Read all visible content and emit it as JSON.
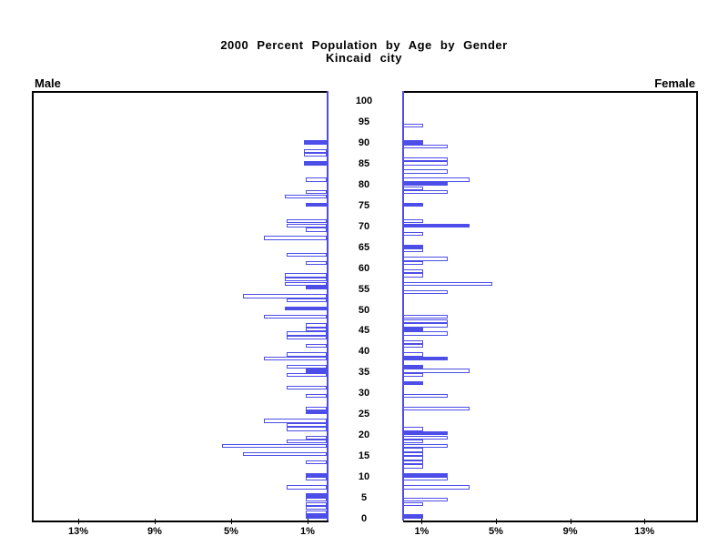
{
  "title": {
    "line1": "2000 Percent Population by Age by Gender",
    "line2": "Kincaid city"
  },
  "left_header": "Male",
  "right_header": "Female",
  "colors": {
    "bar_blue": "#4d4de8",
    "outline_fill": "#ffffff",
    "axis_black": "#000000"
  },
  "chart_data": {
    "type": "bar",
    "subtype": "population-pyramid",
    "title": "2000 Percent Population by Age by Gender",
    "subtitle": "Kincaid city",
    "age_axis": {
      "min": 0,
      "max": 100,
      "step": 5,
      "tick_labels": [
        "0",
        "5",
        "10",
        "15",
        "20",
        "25",
        "30",
        "35",
        "40",
        "45",
        "50",
        "55",
        "60",
        "65",
        "70",
        "75",
        "80",
        "85",
        "90",
        "95",
        "100"
      ]
    },
    "pct_axis": {
      "max_pct": 15.4,
      "male_tick_values": [
        13,
        9,
        5,
        1
      ],
      "male_tick_labels": [
        "13%",
        "9%",
        "5%",
        "1%"
      ],
      "female_tick_values": [
        1,
        5,
        9,
        13
      ],
      "female_tick_labels": [
        "1%",
        "5%",
        "9%",
        "13%"
      ]
    },
    "legend": {
      "solid_bar_meaning": "filled blue bar",
      "outline_bar_meaning": "white bar with blue outline"
    },
    "series": [
      {
        "name": "Male",
        "points": [
          {
            "age": 0,
            "value": 1.1,
            "solid": true
          },
          {
            "age": 1,
            "value": 1.1,
            "solid": false
          },
          {
            "age": 2,
            "value": 1.1,
            "solid": false
          },
          {
            "age": 3,
            "value": 1.1,
            "solid": false
          },
          {
            "age": 4,
            "value": 1.1,
            "solid": false
          },
          {
            "age": 5,
            "value": 1.1,
            "solid": true
          },
          {
            "age": 7,
            "value": 2.1,
            "solid": false
          },
          {
            "age": 9,
            "value": 1.1,
            "solid": false
          },
          {
            "age": 10,
            "value": 1.1,
            "solid": true
          },
          {
            "age": 13,
            "value": 1.1,
            "solid": false
          },
          {
            "age": 15,
            "value": 4.4,
            "solid": false
          },
          {
            "age": 17,
            "value": 5.5,
            "solid": false
          },
          {
            "age": 18,
            "value": 2.1,
            "solid": false
          },
          {
            "age": 19,
            "value": 1.1,
            "solid": false
          },
          {
            "age": 21,
            "value": 2.1,
            "solid": false
          },
          {
            "age": 22,
            "value": 2.1,
            "solid": false
          },
          {
            "age": 23,
            "value": 3.3,
            "solid": false
          },
          {
            "age": 25,
            "value": 1.1,
            "solid": true
          },
          {
            "age": 26,
            "value": 1.1,
            "solid": false
          },
          {
            "age": 29,
            "value": 1.1,
            "solid": false
          },
          {
            "age": 31,
            "value": 2.1,
            "solid": false
          },
          {
            "age": 34,
            "value": 2.1,
            "solid": false
          },
          {
            "age": 35,
            "value": 1.1,
            "solid": true
          },
          {
            "age": 36,
            "value": 2.1,
            "solid": false
          },
          {
            "age": 38,
            "value": 3.3,
            "solid": false
          },
          {
            "age": 39,
            "value": 2.1,
            "solid": false
          },
          {
            "age": 41,
            "value": 1.1,
            "solid": false
          },
          {
            "age": 43,
            "value": 2.1,
            "solid": false
          },
          {
            "age": 44,
            "value": 2.1,
            "solid": false
          },
          {
            "age": 45,
            "value": 1.1,
            "solid": false
          },
          {
            "age": 46,
            "value": 1.1,
            "solid": false
          },
          {
            "age": 48,
            "value": 3.3,
            "solid": false
          },
          {
            "age": 50,
            "value": 2.2,
            "solid": true
          },
          {
            "age": 52,
            "value": 2.1,
            "solid": false
          },
          {
            "age": 53,
            "value": 4.4,
            "solid": false
          },
          {
            "age": 55,
            "value": 1.1,
            "solid": true
          },
          {
            "age": 56,
            "value": 2.2,
            "solid": false
          },
          {
            "age": 57,
            "value": 2.2,
            "solid": false
          },
          {
            "age": 58,
            "value": 2.2,
            "solid": false
          },
          {
            "age": 61,
            "value": 1.1,
            "solid": false
          },
          {
            "age": 63,
            "value": 2.1,
            "solid": false
          },
          {
            "age": 67,
            "value": 3.3,
            "solid": false
          },
          {
            "age": 69,
            "value": 1.1,
            "solid": false
          },
          {
            "age": 70,
            "value": 2.1,
            "solid": false
          },
          {
            "age": 71,
            "value": 2.1,
            "solid": false
          },
          {
            "age": 75,
            "value": 1.1,
            "solid": true
          },
          {
            "age": 77,
            "value": 2.2,
            "solid": false
          },
          {
            "age": 78,
            "value": 1.1,
            "solid": false
          },
          {
            "age": 81,
            "value": 1.1,
            "solid": false
          },
          {
            "age": 85,
            "value": 1.2,
            "solid": true
          },
          {
            "age": 87,
            "value": 1.2,
            "solid": false
          },
          {
            "age": 88,
            "value": 1.2,
            "solid": false
          },
          {
            "age": 90,
            "value": 1.2,
            "solid": true
          }
        ]
      },
      {
        "name": "Female",
        "points": [
          {
            "age": 0,
            "value": 1.1,
            "solid": true
          },
          {
            "age": 3,
            "value": 1.1,
            "solid": false
          },
          {
            "age": 4,
            "value": 2.4,
            "solid": false
          },
          {
            "age": 7,
            "value": 3.6,
            "solid": false
          },
          {
            "age": 9,
            "value": 2.4,
            "solid": false
          },
          {
            "age": 10,
            "value": 2.4,
            "solid": true
          },
          {
            "age": 12,
            "value": 1.1,
            "solid": false
          },
          {
            "age": 13,
            "value": 1.1,
            "solid": false
          },
          {
            "age": 14,
            "value": 1.1,
            "solid": false
          },
          {
            "age": 15,
            "value": 1.1,
            "solid": false
          },
          {
            "age": 16,
            "value": 1.1,
            "solid": false
          },
          {
            "age": 17,
            "value": 2.4,
            "solid": false
          },
          {
            "age": 18,
            "value": 1.1,
            "solid": false
          },
          {
            "age": 19,
            "value": 2.4,
            "solid": false
          },
          {
            "age": 20,
            "value": 2.4,
            "solid": true
          },
          {
            "age": 21,
            "value": 1.1,
            "solid": false
          },
          {
            "age": 26,
            "value": 3.6,
            "solid": false
          },
          {
            "age": 29,
            "value": 2.4,
            "solid": false
          },
          {
            "age": 32,
            "value": 1.1,
            "solid": true
          },
          {
            "age": 34,
            "value": 1.1,
            "solid": false
          },
          {
            "age": 35,
            "value": 3.6,
            "solid": false
          },
          {
            "age": 36,
            "value": 1.1,
            "solid": true
          },
          {
            "age": 38,
            "value": 2.4,
            "solid": true
          },
          {
            "age": 39,
            "value": 1.1,
            "solid": false
          },
          {
            "age": 41,
            "value": 1.1,
            "solid": false
          },
          {
            "age": 42,
            "value": 1.1,
            "solid": false
          },
          {
            "age": 44,
            "value": 2.4,
            "solid": false
          },
          {
            "age": 45,
            "value": 1.1,
            "solid": true
          },
          {
            "age": 46,
            "value": 2.4,
            "solid": false
          },
          {
            "age": 47,
            "value": 2.4,
            "solid": false
          },
          {
            "age": 48,
            "value": 2.4,
            "solid": false
          },
          {
            "age": 54,
            "value": 2.4,
            "solid": false
          },
          {
            "age": 56,
            "value": 4.8,
            "solid": false
          },
          {
            "age": 58,
            "value": 1.1,
            "solid": false
          },
          {
            "age": 59,
            "value": 1.1,
            "solid": false
          },
          {
            "age": 61,
            "value": 1.1,
            "solid": false
          },
          {
            "age": 62,
            "value": 2.4,
            "solid": false
          },
          {
            "age": 64,
            "value": 1.1,
            "solid": false
          },
          {
            "age": 65,
            "value": 1.1,
            "solid": true
          },
          {
            "age": 68,
            "value": 1.1,
            "solid": false
          },
          {
            "age": 70,
            "value": 3.6,
            "solid": true
          },
          {
            "age": 71,
            "value": 1.1,
            "solid": false
          },
          {
            "age": 75,
            "value": 1.1,
            "solid": true
          },
          {
            "age": 78,
            "value": 2.4,
            "solid": false
          },
          {
            "age": 79,
            "value": 1.1,
            "solid": false
          },
          {
            "age": 80,
            "value": 2.4,
            "solid": true
          },
          {
            "age": 81,
            "value": 3.6,
            "solid": false
          },
          {
            "age": 83,
            "value": 2.4,
            "solid": false
          },
          {
            "age": 85,
            "value": 2.4,
            "solid": false
          },
          {
            "age": 86,
            "value": 2.4,
            "solid": false
          },
          {
            "age": 89,
            "value": 2.4,
            "solid": false
          },
          {
            "age": 90,
            "value": 1.1,
            "solid": true
          },
          {
            "age": 94,
            "value": 1.1,
            "solid": false
          }
        ]
      }
    ]
  }
}
